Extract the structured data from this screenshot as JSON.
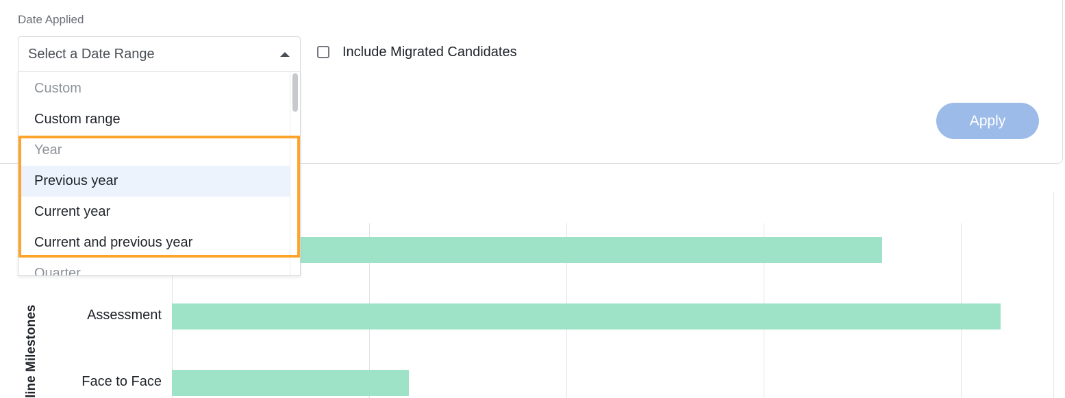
{
  "filters": {
    "date_label": "Date Applied",
    "date_select_value": "Select a Date Range",
    "include_migrated_label": "Include Migrated Candidates",
    "apply_label": "Apply"
  },
  "dropdown": {
    "rows": [
      {
        "type": "header",
        "label": "Custom"
      },
      {
        "type": "option",
        "label": "Custom range"
      },
      {
        "type": "header",
        "label": "Year"
      },
      {
        "type": "option",
        "label": "Previous year",
        "hovered": true
      },
      {
        "type": "option",
        "label": "Current year"
      },
      {
        "type": "option",
        "label": "Current and previous year"
      },
      {
        "type": "header",
        "label": "Quarter"
      }
    ]
  },
  "chart_data": {
    "type": "bar",
    "orientation": "horizontal",
    "ylabel": "line Milestones",
    "categories": [
      "",
      "Assessment",
      "Face to Face"
    ],
    "values": [
      720,
      840,
      240
    ],
    "xlim": [
      0,
      900
    ],
    "grid": true
  },
  "colors": {
    "bar": "#9ee3c7",
    "apply_button": "#9dbbe9",
    "highlight": "#ffa42b",
    "hover_row": "#edf3fd"
  }
}
